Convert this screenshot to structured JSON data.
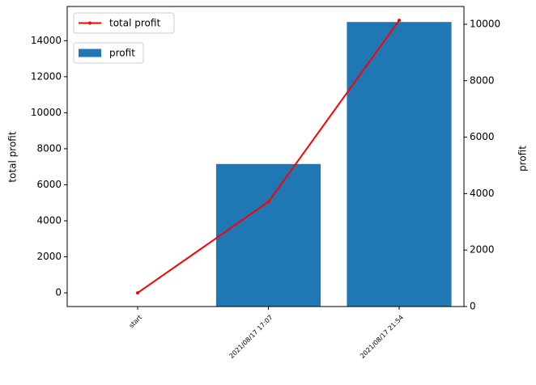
{
  "chart_data": {
    "type": "bar",
    "categories": [
      "start",
      "2021/08/17 17:07",
      "2021/08/17 21:54"
    ],
    "series": [
      {
        "name": "total profit",
        "type": "line",
        "color": "#ff0000",
        "values": [
          0,
          5050,
          15130
        ]
      },
      {
        "name": "profit",
        "type": "bar",
        "color": "#1f77b4",
        "axis": "y2",
        "values": [
          0,
          5050,
          10080
        ]
      }
    ],
    "ylabel": "total profit",
    "ylabel_color": "#ff0000",
    "y2label": "profit",
    "y2label_color": "#0000ff",
    "ylim": [
      -760,
      15900
    ],
    "yticks": [
      0,
      2000,
      4000,
      6000,
      8000,
      10000,
      12000,
      14000
    ],
    "y2lim": [
      0,
      10630
    ],
    "y2ticks": [
      0,
      2000,
      4000,
      6000,
      8000,
      10000
    ],
    "legend": "upper left"
  }
}
